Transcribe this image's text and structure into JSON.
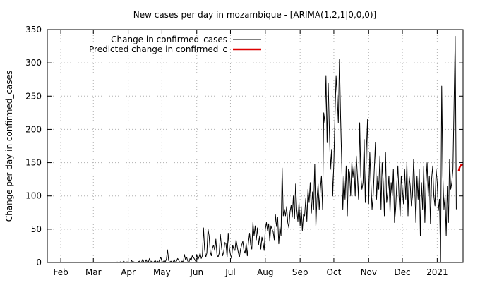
{
  "chart_data": {
    "type": "line",
    "title": "New cases per day in mozambique -  [ARIMA(1,2,1|0,0,0)]",
    "xlabel": "",
    "ylabel": "Change per day in confirmed_cases",
    "ylim": [
      0,
      350
    ],
    "yticks": [
      0,
      50,
      100,
      150,
      200,
      250,
      300,
      350
    ],
    "x_range": [
      "2021-01-20",
      "2021-01-24"
    ],
    "xlim": [
      "2020-01-20",
      "2021-01-24"
    ],
    "xticks": [
      {
        "date": "2020-02-01",
        "label": "Feb"
      },
      {
        "date": "2020-03-01",
        "label": "Mar"
      },
      {
        "date": "2020-04-01",
        "label": "Apr"
      },
      {
        "date": "2020-05-01",
        "label": "May"
      },
      {
        "date": "2020-06-01",
        "label": "Jun"
      },
      {
        "date": "2020-07-01",
        "label": "Jul"
      },
      {
        "date": "2020-08-01",
        "label": "Aug"
      },
      {
        "date": "2020-09-01",
        "label": "Sep"
      },
      {
        "date": "2020-10-01",
        "label": "Oct"
      },
      {
        "date": "2020-11-01",
        "label": "Nov"
      },
      {
        "date": "2020-12-01",
        "label": "Dec"
      },
      {
        "date": "2021-01-01",
        "label": "2021"
      }
    ],
    "grid": true,
    "legend_position": "top-left",
    "series": [
      {
        "name": "Change in confirmed_cases",
        "color": "#000000",
        "start_date": "2020-03-22",
        "values": [
          1,
          0,
          0,
          1,
          0,
          0,
          2,
          0,
          0,
          1,
          0,
          0,
          0,
          3,
          0,
          1,
          0,
          0,
          0,
          1,
          2,
          0,
          1,
          5,
          0,
          0,
          4,
          0,
          1,
          6,
          0,
          2,
          0,
          1,
          3,
          0,
          2,
          0,
          4,
          8,
          2,
          0,
          3,
          1,
          5,
          19,
          3,
          0,
          2,
          0,
          1,
          4,
          0,
          2,
          6,
          3,
          0,
          1,
          2,
          0,
          12,
          4,
          8,
          2,
          0,
          6,
          3,
          10,
          8,
          5,
          2,
          12,
          4,
          8,
          14,
          6,
          10,
          52,
          20,
          8,
          14,
          50,
          40,
          16,
          10,
          22,
          26,
          18,
          35,
          12,
          8,
          14,
          42,
          24,
          10,
          16,
          30,
          28,
          8,
          44,
          22,
          12,
          6,
          26,
          20,
          18,
          34,
          24,
          15,
          8,
          20,
          26,
          32,
          18,
          14,
          28,
          10,
          30,
          44,
          26,
          20,
          60,
          40,
          55,
          34,
          52,
          26,
          40,
          20,
          38,
          30,
          18,
          50,
          60,
          48,
          58,
          32,
          55,
          50,
          46,
          34,
          72,
          54,
          68,
          28,
          54,
          40,
          142,
          70,
          80,
          70,
          84,
          60,
          52,
          76,
          86,
          68,
          100,
          66,
          118,
          80,
          62,
          90,
          55,
          84,
          48,
          72,
          70,
          96,
          62,
          110,
          90,
          120,
          74,
          106,
          80,
          148,
          54,
          96,
          118,
          80,
          110,
          130,
          80,
          225,
          210,
          280,
          180,
          270,
          200,
          140,
          170,
          100,
          150,
          220,
          280,
          250,
          210,
          305,
          220,
          150,
          80,
          130,
          95,
          145,
          70,
          140,
          135,
          100,
          150,
          128,
          145,
          100,
          160,
          130,
          95,
          210,
          130,
          110,
          120,
          185,
          90,
          170,
          215,
          88,
          165,
          120,
          80,
          100,
          140,
          180,
          95,
          130,
          110,
          160,
          80,
          150,
          120,
          70,
          165,
          90,
          105,
          130,
          75,
          120,
          100,
          140,
          60,
          80,
          118,
          145,
          100,
          70,
          130,
          110,
          88,
          140,
          95,
          150,
          70,
          130,
          115,
          85,
          100,
          155,
          115,
          60,
          130,
          95,
          140,
          40,
          120,
          80,
          145,
          60,
          120,
          150,
          100,
          130,
          58,
          125,
          145,
          100,
          85,
          140,
          120,
          78,
          95,
          1,
          265,
          130,
          80,
          100,
          40,
          115,
          60,
          155,
          110,
          120,
          140,
          240,
          340,
          80
        ]
      },
      {
        "name": "Predicted change in confirmed_c",
        "color": "#dd0000",
        "start_date": "2021-01-20",
        "values": [
          137,
          143,
          146,
          147,
          147
        ]
      }
    ]
  }
}
